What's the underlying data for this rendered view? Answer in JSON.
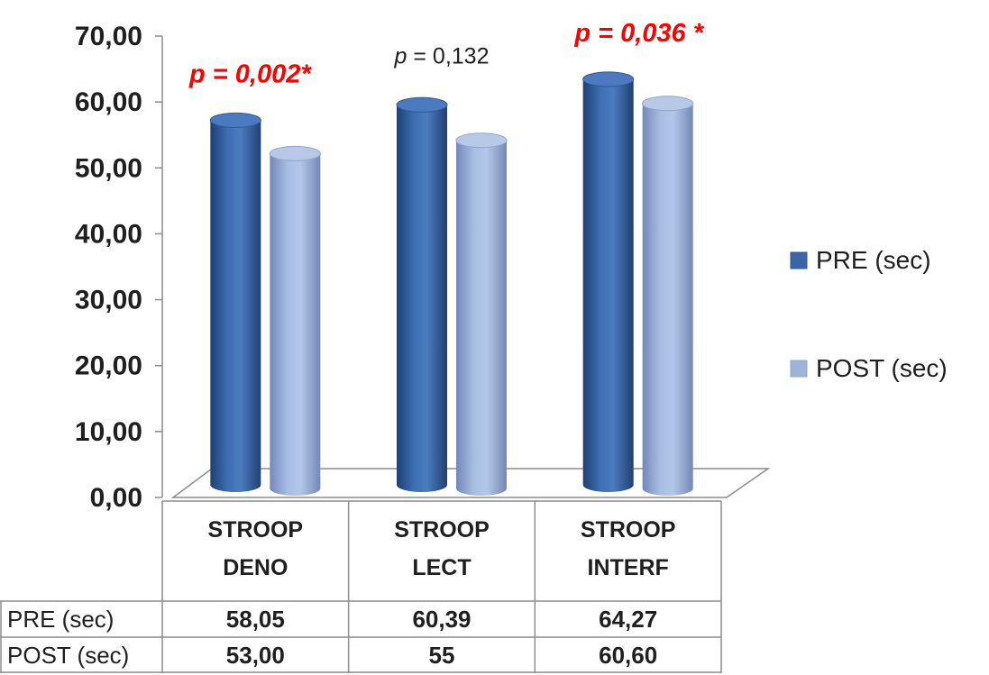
{
  "chart_data": {
    "type": "bar",
    "style": "3d-cylinder",
    "categories": [
      [
        "STROOP",
        "DENO"
      ],
      [
        "STROOP",
        "LECT"
      ],
      [
        "STROOP",
        "INTERF"
      ]
    ],
    "series": [
      {
        "name": "PRE (sec)",
        "values": [
          58.05,
          60.39,
          64.27
        ],
        "labels": [
          "58,05",
          "60,39",
          "64,27"
        ],
        "color": "#3a66a6"
      },
      {
        "name": "POST (sec)",
        "values": [
          53.0,
          55,
          60.6
        ],
        "labels": [
          "53,00",
          "55",
          "60,60"
        ],
        "color": "#9db3da"
      }
    ],
    "ylim": [
      0,
      70
    ],
    "yticks": [
      0,
      10,
      20,
      30,
      40,
      50,
      60,
      70
    ],
    "ytick_labels": [
      "0,00",
      "10,00",
      "20,00",
      "30,00",
      "40,00",
      "50,00",
      "60,00",
      "70,00"
    ],
    "legend": {
      "placement": "right"
    },
    "data_table": true,
    "annotations": [
      {
        "category_index": 0,
        "prefix": "p",
        "text": " = 0,002*",
        "significant": true,
        "color": "#ff0000"
      },
      {
        "category_index": 1,
        "prefix": "p",
        "text": " = 0,132",
        "significant": false,
        "color": "#1f1f1f"
      },
      {
        "category_index": 2,
        "prefix": "p",
        "text": " = 0,036 *",
        "significant": true,
        "color": "#ff0000"
      }
    ]
  }
}
